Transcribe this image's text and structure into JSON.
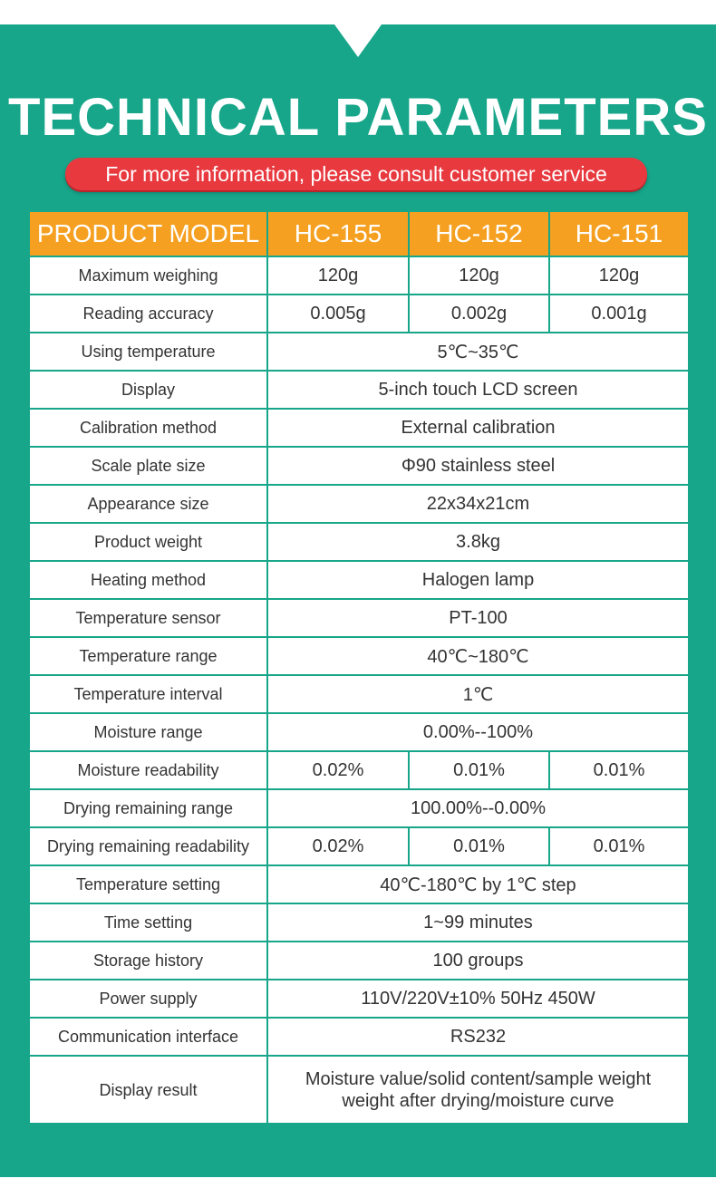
{
  "header": {
    "title": "TECHNICAL PARAMETERS",
    "subtitle": "For more information, please consult customer service"
  },
  "colors": {
    "background": "#17a68a",
    "header_row": "#f5a021",
    "pill": "#e8393f"
  },
  "table": {
    "columns": [
      "PRODUCT MODEL",
      "HC-155",
      "HC-152",
      "HC-151"
    ],
    "rows": [
      {
        "label": "Maximum weighing",
        "values": [
          "120g",
          "120g",
          "120g"
        ]
      },
      {
        "label": "Reading accuracy",
        "values": [
          "0.005g",
          "0.002g",
          "0.001g"
        ]
      },
      {
        "label": "Using temperature",
        "value": "5℃~35℃"
      },
      {
        "label": "Display",
        "value": "5-inch touch LCD screen"
      },
      {
        "label": "Calibration method",
        "value": "External calibration"
      },
      {
        "label": "Scale plate size",
        "value": "Φ90 stainless steel"
      },
      {
        "label": "Appearance size",
        "value": "22x34x21cm"
      },
      {
        "label": "Product weight",
        "value": "3.8kg"
      },
      {
        "label": "Heating method",
        "value": "Halogen lamp"
      },
      {
        "label": "Temperature sensor",
        "value": "PT-100"
      },
      {
        "label": "Temperature range",
        "value": "40℃~180℃"
      },
      {
        "label": "Temperature interval",
        "value": "1℃"
      },
      {
        "label": "Moisture range",
        "value": "0.00%--100%"
      },
      {
        "label": "Moisture readability",
        "values": [
          "0.02%",
          "0.01%",
          "0.01%"
        ]
      },
      {
        "label": "Drying remaining range",
        "value": "100.00%--0.00%"
      },
      {
        "label": "Drying remaining readability",
        "values": [
          "0.02%",
          "0.01%",
          "0.01%"
        ]
      },
      {
        "label": "Temperature setting",
        "value": "40℃-180℃ by 1℃ step"
      },
      {
        "label": "Time setting",
        "value": "1~99 minutes"
      },
      {
        "label": "Storage history",
        "value": "100 groups"
      },
      {
        "label": "Power supply",
        "value": "110V/220V±10% 50Hz 450W"
      },
      {
        "label": "Communication interface",
        "value": "RS232"
      },
      {
        "label": "Display result",
        "lines": [
          "Moisture value/solid content/sample weight",
          "weight after drying/moisture curve"
        ]
      }
    ]
  }
}
